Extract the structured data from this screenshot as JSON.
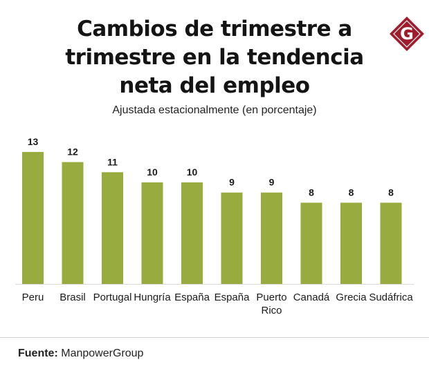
{
  "header": {
    "title_lines": [
      "Cambios de trimestre a",
      "trimestre en la tendencia",
      "neta del empleo"
    ],
    "subtitle": "Ajustada estacionalmente (en porcentaje)"
  },
  "logo": {
    "icon": "g-diamond-logo",
    "letter": "G",
    "color": "#a01c2c"
  },
  "footer": {
    "source_label": "Fuente:",
    "source_value": "ManpowerGroup"
  },
  "colors": {
    "bar": "#97ab3f",
    "axis": "#d9d9d9"
  },
  "chart_data": {
    "type": "bar",
    "categories": [
      "Peru",
      "Brasil",
      "Portugal",
      "Hungría",
      "España",
      "España",
      "Puerto Rico",
      "Canadá",
      "Grecia",
      "Sudáfrica"
    ],
    "values": [
      13,
      12,
      11,
      10,
      10,
      9,
      9,
      8,
      8,
      8
    ],
    "ylim": [
      0,
      13
    ],
    "grid": false,
    "legend": "none",
    "data_labels": true
  }
}
